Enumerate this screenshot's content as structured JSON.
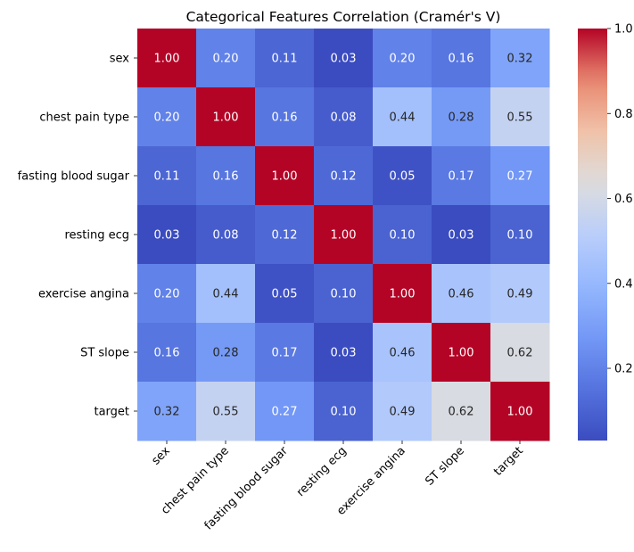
{
  "chart_data": {
    "type": "heatmap",
    "title": "Categorical Features Correlation (Cramér's V)",
    "xlabel": "",
    "ylabel": "",
    "x_categories": [
      "sex",
      "chest pain type",
      "fasting blood sugar",
      "resting ecg",
      "exercise angina",
      "ST slope",
      "target"
    ],
    "y_categories": [
      "sex",
      "chest pain type",
      "fasting blood sugar",
      "resting ecg",
      "exercise angina",
      "ST slope",
      "target"
    ],
    "values": [
      [
        1.0,
        0.2,
        0.11,
        0.03,
        0.2,
        0.16,
        0.32
      ],
      [
        0.2,
        1.0,
        0.16,
        0.08,
        0.44,
        0.28,
        0.55
      ],
      [
        0.11,
        0.16,
        1.0,
        0.12,
        0.05,
        0.17,
        0.27
      ],
      [
        0.03,
        0.08,
        0.12,
        1.0,
        0.1,
        0.03,
        0.1
      ],
      [
        0.2,
        0.44,
        0.05,
        0.1,
        1.0,
        0.46,
        0.49
      ],
      [
        0.16,
        0.28,
        0.17,
        0.03,
        0.46,
        1.0,
        0.62
      ],
      [
        0.32,
        0.55,
        0.27,
        0.1,
        0.49,
        0.62,
        1.0
      ]
    ],
    "colormap": "coolwarm",
    "value_range": [
      0.03,
      1.0
    ],
    "annotation_format": "0.00",
    "colorbar": {
      "ticks": [
        0.2,
        0.4,
        0.6,
        0.8,
        1.0
      ],
      "tick_labels": [
        "0.2",
        "0.4",
        "0.6",
        "0.8",
        "1.0"
      ],
      "placement": "right"
    },
    "x_tick_rotation_deg": 45,
    "grid": false
  }
}
